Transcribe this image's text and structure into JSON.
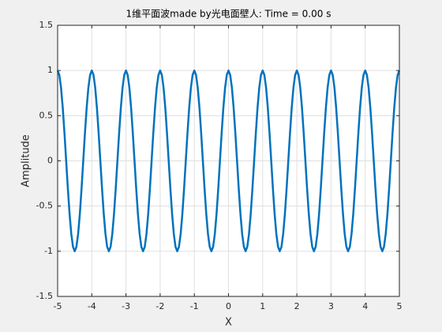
{
  "chart_data": {
    "type": "line",
    "title": "1维平面波made by光电面壁人: Time = 0.00 s",
    "xlabel": "X",
    "ylabel": "Amplitude",
    "xlim": [
      -5,
      5
    ],
    "ylim": [
      -1.5,
      1.5
    ],
    "xticks": [
      -5,
      -4,
      -3,
      -2,
      -1,
      0,
      1,
      2,
      3,
      4,
      5
    ],
    "yticks": [
      -1.5,
      -1,
      -0.5,
      0,
      0.5,
      1,
      1.5
    ],
    "grid": true,
    "x": [
      -5,
      -4.95,
      -4.9,
      -4.85,
      -4.8,
      -4.75,
      -4.7,
      -4.65,
      -4.6,
      -4.55,
      -4.5,
      -4.45,
      -4.4,
      -4.35,
      -4.3,
      -4.25,
      -4.2,
      -4.15,
      -4.1,
      -4.05,
      -4,
      -3.95,
      -3.9,
      -3.85,
      -3.8,
      -3.75,
      -3.7,
      -3.65,
      -3.6,
      -3.55,
      -3.5,
      -3.45,
      -3.4,
      -3.35,
      -3.3,
      -3.25,
      -3.2,
      -3.15,
      -3.1,
      -3.05,
      -3,
      -2.95,
      -2.9,
      -2.85,
      -2.8,
      -2.75,
      -2.7,
      -2.65,
      -2.6,
      -2.55,
      -2.5,
      -2.45,
      -2.4,
      -2.35,
      -2.3,
      -2.25,
      -2.2,
      -2.15,
      -2.1,
      -2.05,
      -2,
      -1.95,
      -1.9,
      -1.85,
      -1.8,
      -1.75,
      -1.7,
      -1.65,
      -1.6,
      -1.55,
      -1.5,
      -1.45,
      -1.4,
      -1.35,
      -1.3,
      -1.25,
      -1.2,
      -1.15,
      -1.1,
      -1.05,
      -1,
      -0.95,
      -0.9,
      -0.85,
      -0.8,
      -0.75,
      -0.7,
      -0.65,
      -0.6,
      -0.55,
      -0.5,
      -0.45,
      -0.4,
      -0.35,
      -0.3,
      -0.25,
      -0.2,
      -0.15,
      -0.1,
      -0.05,
      0,
      0.05,
      0.1,
      0.15,
      0.2,
      0.25,
      0.3,
      0.35,
      0.4,
      0.45,
      0.5,
      0.55,
      0.6,
      0.65,
      0.7,
      0.75,
      0.8,
      0.85,
      0.9,
      0.95,
      1,
      1.05,
      1.1,
      1.15,
      1.2,
      1.25,
      1.3,
      1.35,
      1.4,
      1.45,
      1.5,
      1.55,
      1.6,
      1.65,
      1.7,
      1.75,
      1.8,
      1.85,
      1.9,
      1.95,
      2,
      2.05,
      2.1,
      2.15,
      2.2,
      2.25,
      2.3,
      2.35,
      2.4,
      2.45,
      2.5,
      2.55,
      2.6,
      2.65,
      2.7,
      2.75,
      2.8,
      2.85,
      2.9,
      2.95,
      3,
      3.05,
      3.1,
      3.15,
      3.2,
      3.25,
      3.3,
      3.35,
      3.4,
      3.45,
      3.5,
      3.55,
      3.6,
      3.65,
      3.7,
      3.75,
      3.8,
      3.85,
      3.9,
      3.95,
      4,
      4.05,
      4.1,
      4.15,
      4.2,
      4.25,
      4.3,
      4.35,
      4.4,
      4.45,
      4.5,
      4.55,
      4.6,
      4.65,
      4.7,
      4.75,
      4.8,
      4.85,
      4.9,
      4.95,
      5
    ],
    "series": [
      {
        "color": "#0072bd",
        "values": [
          1,
          0.951,
          0.809,
          0.588,
          0.309,
          0,
          -0.309,
          -0.588,
          -0.809,
          -0.951,
          -1,
          -0.951,
          -0.809,
          -0.588,
          -0.309,
          0,
          0.309,
          0.588,
          0.809,
          0.951,
          1,
          0.951,
          0.809,
          0.588,
          0.309,
          0,
          -0.309,
          -0.588,
          -0.809,
          -0.951,
          -1,
          -0.951,
          -0.809,
          -0.588,
          -0.309,
          0,
          0.309,
          0.588,
          0.809,
          0.951,
          1,
          0.951,
          0.809,
          0.588,
          0.309,
          0,
          -0.309,
          -0.588,
          -0.809,
          -0.951,
          -1,
          -0.951,
          -0.809,
          -0.588,
          -0.309,
          0,
          0.309,
          0.588,
          0.809,
          0.951,
          1,
          0.951,
          0.809,
          0.588,
          0.309,
          0,
          -0.309,
          -0.588,
          -0.809,
          -0.951,
          -1,
          -0.951,
          -0.809,
          -0.588,
          -0.309,
          0,
          0.309,
          0.588,
          0.809,
          0.951,
          1,
          0.951,
          0.809,
          0.588,
          0.309,
          0,
          -0.309,
          -0.588,
          -0.809,
          -0.951,
          -1,
          -0.951,
          -0.809,
          -0.588,
          -0.309,
          0,
          0.309,
          0.588,
          0.809,
          0.951,
          1,
          0.951,
          0.809,
          0.588,
          0.309,
          0,
          -0.309,
          -0.588,
          -0.809,
          -0.951,
          -1,
          -0.951,
          -0.809,
          -0.588,
          -0.309,
          0,
          0.309,
          0.588,
          0.809,
          0.951,
          1,
          0.951,
          0.809,
          0.588,
          0.309,
          0,
          -0.309,
          -0.588,
          -0.809,
          -0.951,
          -1,
          -0.951,
          -0.809,
          -0.588,
          -0.309,
          0,
          0.309,
          0.588,
          0.809,
          0.951,
          1,
          0.951,
          0.809,
          0.588,
          0.309,
          0,
          -0.309,
          -0.588,
          -0.809,
          -0.951,
          -1,
          -0.951,
          -0.809,
          -0.588,
          -0.309,
          0,
          0.309,
          0.588,
          0.809,
          0.951,
          1,
          0.951,
          0.809,
          0.588,
          0.309,
          0,
          -0.309,
          -0.588,
          -0.809,
          -0.951,
          -1,
          -0.951,
          -0.809,
          -0.588,
          -0.309,
          0,
          0.309,
          0.588,
          0.809,
          0.951,
          1,
          0.951,
          0.809,
          0.588,
          0.309,
          0,
          -0.309,
          -0.588,
          -0.809,
          -0.951,
          -1,
          -0.951,
          -0.809,
          -0.588,
          -0.309,
          0,
          0.309,
          0.588,
          0.809,
          0.951,
          1
        ]
      }
    ]
  }
}
